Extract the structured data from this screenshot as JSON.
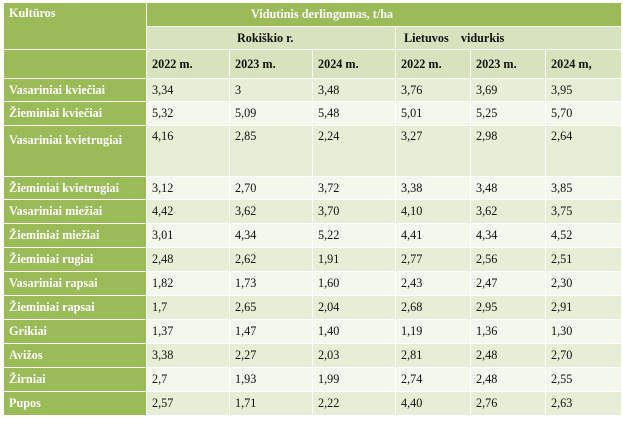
{
  "table": {
    "crop_header": "Kultūros",
    "yield_header": "Vidutinis    derlingumas, t/ha",
    "region_header": "Rokiškio r.",
    "lithuania_header": "Lietuvos    vidurkis",
    "years": [
      "2022 m.",
      "2023 m.",
      "2024 m.",
      "2022 m.",
      "2023 m.",
      "2024 m,"
    ],
    "rows": [
      {
        "crop": "Vasariniai kviečiai",
        "values": [
          "3,34",
          "3",
          "3,48",
          "3,76",
          "3,69",
          "3,95"
        ]
      },
      {
        "crop": "Žieminiai kviečiai",
        "values": [
          "5,32",
          "5,09",
          "5,48",
          "5,01",
          "5,25",
          "5,70"
        ]
      },
      {
        "crop": "Vasariniai kvietrugiai",
        "values": [
          "4,16",
          "2,85",
          "2,24",
          "3,27",
          "2,98",
          "2,64"
        ]
      },
      {
        "crop": "Žieminiai kvietrugiai",
        "values": [
          "3,12",
          "2,70",
          "3,72",
          "3,38",
          "3,48",
          "3,85"
        ]
      },
      {
        "crop": "Vasariniai miežiai",
        "values": [
          "4,42",
          "3,62",
          "3,70",
          "4,10",
          "3,62",
          "3,75"
        ]
      },
      {
        "crop": "Žieminiai miežiai",
        "values": [
          "3,01",
          "4,34",
          "5,22",
          "4,41",
          "4,34",
          "4,52"
        ]
      },
      {
        "crop": "Žieminiai rugiai",
        "values": [
          "2,48",
          "2,62",
          "1,91",
          "2,77",
          "2,56",
          "2,51"
        ]
      },
      {
        "crop": "Vasariniai rapsai",
        "values": [
          "1,82",
          "1,73",
          "1,60",
          "2,43",
          "2,47",
          "2,30"
        ]
      },
      {
        "crop": "Žieminiai rapsai",
        "values": [
          "1,7",
          "2,65",
          "2,04",
          "2,68",
          "2,95",
          "2,91"
        ]
      },
      {
        "crop": "Grikiai",
        "values": [
          "1,37",
          "1,47",
          "1,40",
          "1,19",
          "1,36",
          "1,30"
        ]
      },
      {
        "crop": "Avižos",
        "values": [
          "3,38",
          "2,27",
          "2,03",
          "2,81",
          "2,48",
          "2,70"
        ]
      },
      {
        "crop": "Žirniai",
        "values": [
          "2,7",
          "1,93",
          "1,99",
          "2,74",
          "2,48",
          "2,55"
        ]
      },
      {
        "crop": "Pupos",
        "values": [
          "2,57",
          "1,71",
          "2,22",
          "4,40",
          "2,76",
          "2,63"
        ]
      }
    ]
  }
}
